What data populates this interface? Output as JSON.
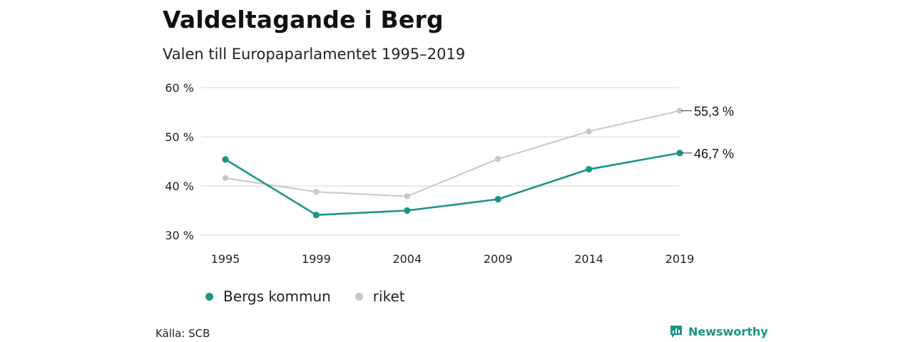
{
  "title": "Valdeltagande i Berg",
  "subtitle": "Valen till Europaparlamentet 1995–2019",
  "source": "Källa: SCB",
  "brand": "Newsworthy",
  "colors": {
    "bergs_kommun": "#1b9585",
    "riket": "#c8c8c8",
    "grid": "#dddddd",
    "brand": "#1b9585"
  },
  "chart_data": {
    "type": "line",
    "x": [
      "1995",
      "1999",
      "2004",
      "2009",
      "2014",
      "2019"
    ],
    "series": [
      {
        "name": "Bergs kommun",
        "color": "#1b9585",
        "values": [
          45.4,
          34.1,
          35.0,
          37.3,
          43.4,
          46.7
        ],
        "end_label": "46,7 %"
      },
      {
        "name": "riket",
        "color": "#c8c8c8",
        "values": [
          41.6,
          38.8,
          37.9,
          45.5,
          51.1,
          55.3
        ],
        "end_label": "55,3 %"
      }
    ],
    "yticks": [
      30,
      40,
      50,
      60
    ],
    "ytick_labels": [
      "30 %",
      "40 %",
      "50 %",
      "60 %"
    ],
    "ylim": [
      30,
      60
    ],
    "grid": true,
    "legend_position": "bottom-left"
  }
}
